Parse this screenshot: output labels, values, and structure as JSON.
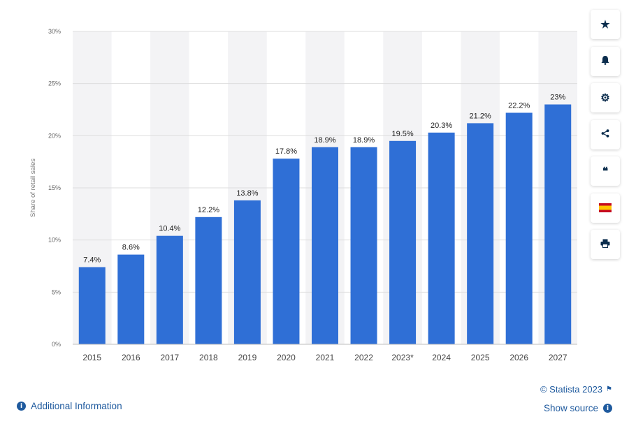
{
  "chart_data": {
    "type": "bar",
    "categories": [
      "2015",
      "2016",
      "2017",
      "2018",
      "2019",
      "2020",
      "2021",
      "2022",
      "2023*",
      "2024",
      "2025",
      "2026",
      "2027"
    ],
    "values": [
      7.4,
      8.6,
      10.4,
      12.2,
      13.8,
      17.8,
      18.9,
      18.9,
      19.5,
      20.3,
      21.2,
      22.2,
      23
    ],
    "value_labels": [
      "7.4%",
      "8.6%",
      "10.4%",
      "12.2%",
      "13.8%",
      "17.8%",
      "18.9%",
      "18.9%",
      "19.5%",
      "20.3%",
      "21.2%",
      "22.2%",
      "23%"
    ],
    "title": "",
    "xlabel": "",
    "ylabel": "Share of retail sales",
    "ylim": [
      0,
      30
    ],
    "yticks": [
      0,
      5,
      10,
      15,
      20,
      25,
      30
    ],
    "ytick_labels": [
      "0%",
      "5%",
      "10%",
      "15%",
      "20%",
      "25%",
      "30%"
    ],
    "grid": true,
    "bar_color": "#2f6fd6",
    "band_color": "#f3f3f5"
  },
  "toolbar": {
    "icons": [
      "star-icon",
      "bell-icon",
      "gear-icon",
      "share-icon",
      "quote-icon",
      "spain-flag-icon",
      "print-icon"
    ],
    "star": "★",
    "bell": "🔔︎",
    "gear": "⚙",
    "share": "⋖",
    "quote": "❝",
    "print": "⎙"
  },
  "footer": {
    "additional_info": "Additional Information",
    "credit": "© Statista 2023",
    "show_source": "Show source",
    "info_glyph": "i",
    "accent_color": "#1f5a9e"
  }
}
